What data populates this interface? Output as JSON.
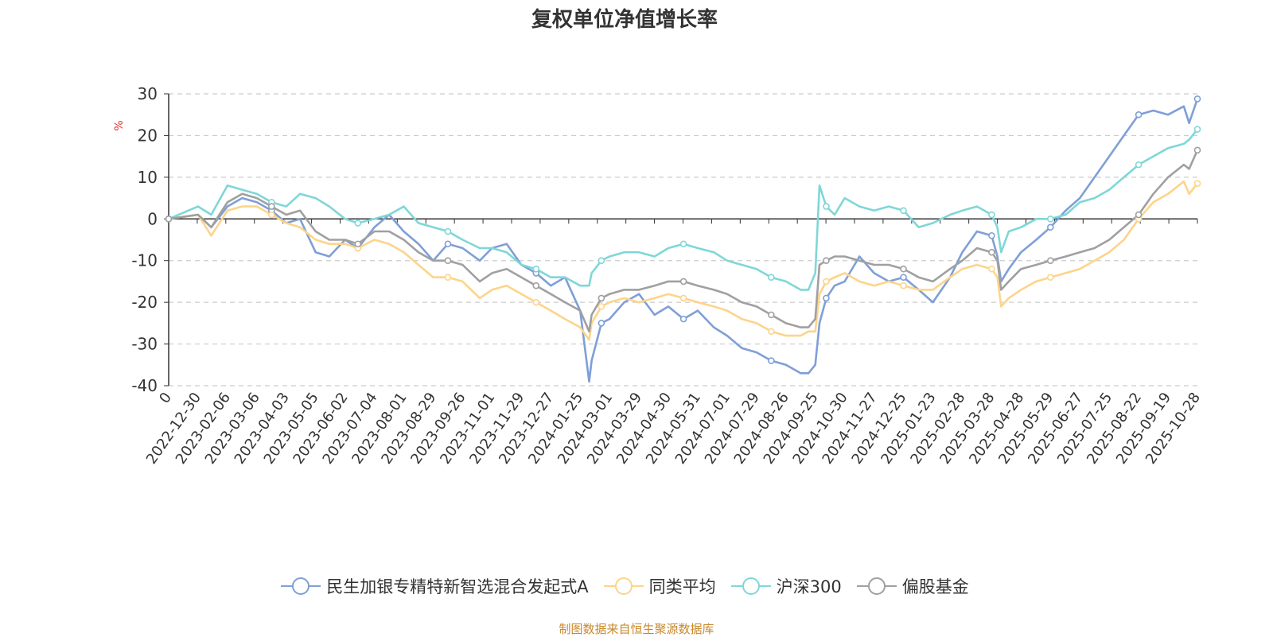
{
  "chart_data": {
    "type": "line",
    "title": "复权单位净值增长率",
    "ylabel": "%",
    "ylim": [
      -40,
      30
    ],
    "yticks": [
      30,
      20,
      10,
      0,
      -10,
      -20,
      -30,
      -40
    ],
    "x_tick_labels": [
      "0",
      "2022-12-30",
      "2023-02-06",
      "2023-03-06",
      "2023-04-03",
      "2023-05-05",
      "2023-06-02",
      "2023-07-04",
      "2023-08-01",
      "2023-08-29",
      "2023-09-26",
      "2023-11-01",
      "2023-11-29",
      "2023-12-27",
      "2024-01-25",
      "2024-03-01",
      "2024-03-29",
      "2024-04-30",
      "2024-05-31",
      "2024-07-01",
      "2024-07-29",
      "2024-08-26",
      "2024-09-25",
      "2024-10-30",
      "2024-11-27",
      "2024-12-25",
      "2025-01-23",
      "2025-02-28",
      "2025-03-28",
      "2025-04-28",
      "2025-05-29",
      "2025-06-27",
      "2025-07-25",
      "2025-08-22",
      "2025-09-19",
      "2025-10-28"
    ],
    "grid": true,
    "legend_position": "bottom",
    "x": [
      "0",
      "2022-12-30",
      "2023-01-16",
      "2023-02-06",
      "2023-02-20",
      "2023-03-06",
      "2023-03-20",
      "2023-04-03",
      "2023-04-18",
      "2023-05-05",
      "2023-05-18",
      "2023-06-02",
      "2023-06-16",
      "2023-07-04",
      "2023-07-18",
      "2023-08-01",
      "2023-08-15",
      "2023-08-29",
      "2023-09-12",
      "2023-09-26",
      "2023-10-17",
      "2023-11-01",
      "2023-11-15",
      "2023-11-29",
      "2023-12-13",
      "2023-12-27",
      "2024-01-10",
      "2024-01-25",
      "2024-02-05",
      "2024-02-08",
      "2024-02-20",
      "2024-03-01",
      "2024-03-15",
      "2024-03-29",
      "2024-04-15",
      "2024-04-30",
      "2024-05-16",
      "2024-05-31",
      "2024-06-17",
      "2024-07-01",
      "2024-07-15",
      "2024-07-29",
      "2024-08-12",
      "2024-08-26",
      "2024-09-10",
      "2024-09-18",
      "2024-09-25",
      "2024-09-30",
      "2024-10-08",
      "2024-10-18",
      "2024-10-30",
      "2024-11-13",
      "2024-11-27",
      "2024-12-11",
      "2024-12-25",
      "2025-01-09",
      "2025-01-23",
      "2025-02-13",
      "2025-02-28",
      "2025-03-14",
      "2025-03-28",
      "2025-04-03",
      "2025-04-07",
      "2025-04-15",
      "2025-04-28",
      "2025-05-14",
      "2025-05-29",
      "2025-06-13",
      "2025-06-27",
      "2025-07-11",
      "2025-07-25",
      "2025-08-08",
      "2025-08-22",
      "2025-09-05",
      "2025-09-19",
      "2025-10-10",
      "2025-10-17",
      "2025-10-28"
    ],
    "series": [
      {
        "name": "民生加银专精特新智选混合发起式A",
        "color": "#7f9fd7",
        "values": [
          0,
          1,
          -2,
          3,
          5,
          4,
          2,
          -1,
          0,
          -8,
          -9,
          -5,
          -7,
          -2,
          1,
          -3,
          -6,
          -10,
          -6,
          -7,
          -10,
          -7,
          -6,
          -11,
          -13,
          -16,
          -14,
          -22,
          -39,
          -34,
          -25,
          -24,
          -20,
          -18,
          -23,
          -21,
          -24,
          -22,
          -26,
          -28,
          -31,
          -32,
          -34,
          -35,
          -37,
          -37,
          -35,
          -25,
          -19,
          -16,
          -15,
          -9,
          -13,
          -15,
          -14,
          -17,
          -20,
          -14,
          -8,
          -3,
          -4,
          -9,
          -15,
          -12,
          -8,
          -5,
          -2,
          2,
          5,
          10,
          15,
          20,
          25,
          26,
          25,
          27,
          23,
          28.8
        ]
      },
      {
        "name": "同类平均",
        "color": "#fdd48a",
        "values": [
          0,
          1,
          -4,
          2,
          3,
          3,
          1,
          -1,
          -2,
          -5,
          -6,
          -6,
          -7,
          -5,
          -6,
          -8,
          -11,
          -14,
          -14,
          -15,
          -19,
          -17,
          -16,
          -18,
          -20,
          -22,
          -24,
          -26,
          -29,
          -25,
          -21,
          -20,
          -19,
          -20,
          -19,
          -18,
          -19,
          -20,
          -21,
          -22,
          -24,
          -25,
          -27,
          -28,
          -28,
          -27,
          -27,
          -18,
          -15,
          -14,
          -13,
          -15,
          -16,
          -15,
          -16,
          -17,
          -17,
          -14,
          -12,
          -11,
          -12,
          -14,
          -21,
          -19,
          -17,
          -15,
          -14,
          -13,
          -12,
          -10,
          -8,
          -5,
          0,
          4,
          6,
          9,
          6,
          8.5
        ]
      },
      {
        "name": "沪深300",
        "color": "#7fd7d7",
        "values": [
          0,
          3,
          1,
          8,
          7,
          6,
          4,
          3,
          6,
          5,
          3,
          0,
          -1,
          0,
          1,
          3,
          -1,
          -2,
          -3,
          -5,
          -7,
          -7,
          -8,
          -11,
          -12,
          -14,
          -14,
          -16,
          -16,
          -13,
          -10,
          -9,
          -8,
          -8,
          -9,
          -7,
          -6,
          -7,
          -8,
          -10,
          -11,
          -12,
          -14,
          -15,
          -17,
          -17,
          -13,
          8,
          3,
          1,
          5,
          3,
          2,
          3,
          2,
          -2,
          -1,
          1,
          2,
          3,
          1,
          -2,
          -8,
          -3,
          -2,
          0,
          0,
          1,
          4,
          5,
          7,
          10,
          13,
          15,
          17,
          18,
          19,
          21.5
        ]
      },
      {
        "name": "偏股基金",
        "color": "#a0a0a0",
        "values": [
          0,
          1,
          -2,
          4,
          6,
          5,
          3,
          1,
          2,
          -3,
          -5,
          -5,
          -6,
          -3,
          -3,
          -5,
          -8,
          -10,
          -10,
          -11,
          -15,
          -13,
          -12,
          -14,
          -16,
          -18,
          -20,
          -22,
          -27,
          -23,
          -19,
          -18,
          -17,
          -17,
          -16,
          -15,
          -15,
          -16,
          -17,
          -18,
          -20,
          -21,
          -23,
          -25,
          -26,
          -26,
          -24,
          -11,
          -10,
          -9,
          -9,
          -10,
          -11,
          -11,
          -12,
          -14,
          -15,
          -12,
          -10,
          -7,
          -8,
          -10,
          -17,
          -15,
          -12,
          -11,
          -10,
          -9,
          -8,
          -7,
          -5,
          -2,
          1,
          6,
          10,
          13,
          12,
          16.5
        ]
      }
    ]
  },
  "footer": {
    "source": "制图数据来自恒生聚源数据库"
  }
}
